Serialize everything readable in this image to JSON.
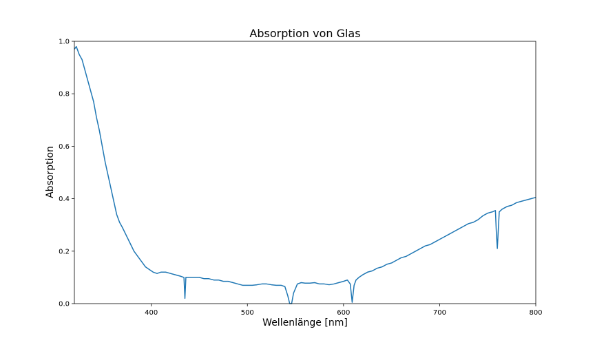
{
  "chart_data": {
    "type": "line",
    "title": "Absorption von Glas",
    "xlabel": "Wellenlänge [nm]",
    "ylabel": "Absorption",
    "xlim": [
      320,
      800
    ],
    "ylim": [
      0.0,
      1.0
    ],
    "xticks": [
      400,
      500,
      600,
      700,
      800
    ],
    "yticks": [
      0.0,
      0.2,
      0.4,
      0.6,
      0.8,
      1.0
    ],
    "ytick_labels": [
      "0.0",
      "0.2",
      "0.4",
      "0.6",
      "0.8",
      "1.0"
    ],
    "grid": false,
    "color": "#1f77b4",
    "series": [
      {
        "x": [
          320,
          322,
          325,
          328,
          331,
          334,
          337,
          340,
          343,
          346,
          349,
          352,
          355,
          358,
          361,
          364,
          367,
          370,
          374,
          378,
          382,
          386,
          390,
          394,
          398,
          402,
          406,
          410,
          415,
          420,
          425,
          430,
          434,
          435,
          436,
          440,
          445,
          450,
          455,
          460,
          465,
          470,
          475,
          480,
          485,
          490,
          495,
          500,
          505,
          510,
          515,
          520,
          525,
          530,
          535,
          539,
          542,
          544,
          546,
          548,
          552,
          556,
          560,
          565,
          570,
          575,
          580,
          585,
          590,
          595,
          600,
          604,
          607,
          609,
          611,
          613,
          616,
          620,
          625,
          630,
          635,
          640,
          645,
          650,
          655,
          660,
          665,
          670,
          675,
          680,
          685,
          690,
          695,
          700,
          705,
          710,
          715,
          720,
          725,
          730,
          735,
          740,
          745,
          750,
          755,
          758,
          759,
          760,
          762,
          765,
          770,
          775,
          780,
          785,
          790,
          795,
          800
        ],
        "y": [
          0.97,
          0.98,
          0.95,
          0.93,
          0.89,
          0.85,
          0.81,
          0.77,
          0.71,
          0.66,
          0.6,
          0.54,
          0.49,
          0.44,
          0.39,
          0.34,
          0.31,
          0.29,
          0.26,
          0.23,
          0.2,
          0.18,
          0.16,
          0.14,
          0.13,
          0.12,
          0.115,
          0.12,
          0.12,
          0.115,
          0.11,
          0.105,
          0.1,
          0.02,
          0.1,
          0.1,
          0.1,
          0.1,
          0.095,
          0.095,
          0.09,
          0.09,
          0.085,
          0.085,
          0.08,
          0.075,
          0.07,
          0.07,
          0.07,
          0.072,
          0.075,
          0.075,
          0.072,
          0.07,
          0.07,
          0.065,
          0.03,
          0.0,
          0.0,
          0.04,
          0.075,
          0.08,
          0.078,
          0.078,
          0.08,
          0.075,
          0.075,
          0.072,
          0.075,
          0.08,
          0.085,
          0.09,
          0.075,
          0.005,
          0.07,
          0.09,
          0.1,
          0.11,
          0.12,
          0.125,
          0.135,
          0.14,
          0.15,
          0.155,
          0.165,
          0.175,
          0.18,
          0.19,
          0.2,
          0.21,
          0.22,
          0.225,
          0.235,
          0.245,
          0.255,
          0.265,
          0.275,
          0.285,
          0.295,
          0.305,
          0.31,
          0.32,
          0.335,
          0.345,
          0.35,
          0.355,
          0.27,
          0.21,
          0.35,
          0.36,
          0.37,
          0.375,
          0.385,
          0.39,
          0.395,
          0.4,
          0.405
        ]
      }
    ]
  }
}
